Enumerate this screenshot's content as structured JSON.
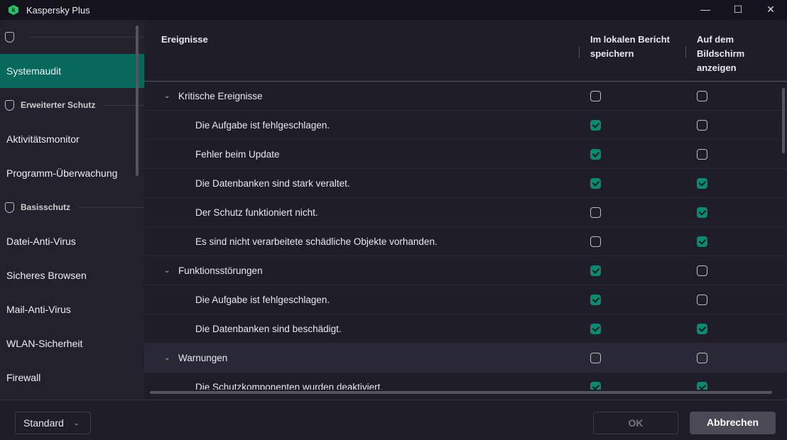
{
  "app": {
    "title": "Kaspersky Plus",
    "logo_letter": "k"
  },
  "window": {
    "minimize": "—",
    "maximize": "☐",
    "close": "✕"
  },
  "sidebar": {
    "items": [
      {
        "type": "group",
        "label": ""
      },
      {
        "type": "item",
        "label": "Systemaudit",
        "selected": true
      },
      {
        "type": "group",
        "label": "Erweiterter Schutz"
      },
      {
        "type": "item",
        "label": "Aktivitätsmonitor"
      },
      {
        "type": "item",
        "label": "Programm-Überwachung"
      },
      {
        "type": "group",
        "label": "Basisschutz"
      },
      {
        "type": "item",
        "label": "Datei-Anti-Virus"
      },
      {
        "type": "item",
        "label": "Sicheres Browsen"
      },
      {
        "type": "item",
        "label": "Mail-Anti-Virus"
      },
      {
        "type": "item",
        "label": "WLAN-Sicherheit"
      },
      {
        "type": "item",
        "label": "Firewall"
      }
    ]
  },
  "table": {
    "columns": [
      "Ereignisse",
      "Im lokalen Bericht speichern",
      "Auf dem Bildschirm anzeigen"
    ],
    "rows": [
      {
        "kind": "cat",
        "label": "Kritische Ereignisse",
        "report": false,
        "screen": false
      },
      {
        "kind": "sub",
        "label": "Die Aufgabe ist fehlgeschlagen.",
        "report": true,
        "screen": false
      },
      {
        "kind": "sub",
        "label": "Fehler beim Update",
        "report": true,
        "screen": false
      },
      {
        "kind": "sub",
        "label": "Die Datenbanken sind stark veraltet.",
        "report": true,
        "screen": true
      },
      {
        "kind": "sub",
        "label": "Der Schutz funktioniert nicht.",
        "report": false,
        "screen": true
      },
      {
        "kind": "sub",
        "label": "Es sind nicht verarbeitete schädliche Objekte vorhanden.",
        "report": false,
        "screen": true
      },
      {
        "kind": "cat",
        "label": "Funktionsstörungen",
        "report": true,
        "screen": false
      },
      {
        "kind": "sub",
        "label": "Die Aufgabe ist fehlgeschlagen.",
        "report": true,
        "screen": false
      },
      {
        "kind": "sub",
        "label": "Die Datenbanken sind beschädigt.",
        "report": true,
        "screen": true
      },
      {
        "kind": "cat",
        "label": "Warnungen",
        "report": false,
        "screen": false,
        "highlighted": true
      },
      {
        "kind": "sub",
        "label": "Die Schutzkomponenten wurden deaktiviert.",
        "report": true,
        "screen": true
      }
    ]
  },
  "footer": {
    "profile": "Standard",
    "ok": "OK",
    "cancel": "Abbrechen"
  },
  "colors": {
    "accent": "#06695b",
    "checkbox": "#0b8a73",
    "background": "#1e1d28"
  }
}
